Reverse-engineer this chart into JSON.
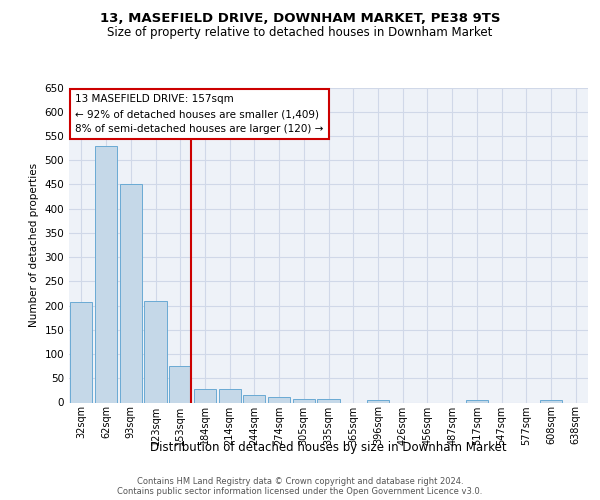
{
  "title1": "13, MASEFIELD DRIVE, DOWNHAM MARKET, PE38 9TS",
  "title2": "Size of property relative to detached houses in Downham Market",
  "xlabel": "Distribution of detached houses by size in Downham Market",
  "ylabel": "Number of detached properties",
  "footer1": "Contains HM Land Registry data © Crown copyright and database right 2024.",
  "footer2": "Contains public sector information licensed under the Open Government Licence v3.0.",
  "categories": [
    "32sqm",
    "62sqm",
    "93sqm",
    "123sqm",
    "153sqm",
    "184sqm",
    "214sqm",
    "244sqm",
    "274sqm",
    "305sqm",
    "335sqm",
    "365sqm",
    "396sqm",
    "426sqm",
    "456sqm",
    "487sqm",
    "517sqm",
    "547sqm",
    "577sqm",
    "608sqm",
    "638sqm"
  ],
  "values": [
    207,
    530,
    450,
    210,
    75,
    27,
    27,
    15,
    12,
    7,
    7,
    0,
    5,
    0,
    0,
    0,
    5,
    0,
    0,
    5,
    0
  ],
  "bar_color": "#c5d8e8",
  "bar_edge_color": "#6aaad4",
  "grid_color": "#d0d8e8",
  "background_color": "#eef2f8",
  "annotation_box_color": "#cc0000",
  "vline_color": "#cc0000",
  "vline_x_index": 4,
  "annotation_title": "13 MASEFIELD DRIVE: 157sqm",
  "annotation_line1": "← 92% of detached houses are smaller (1,409)",
  "annotation_line2": "8% of semi-detached houses are larger (120) →",
  "ylim": [
    0,
    650
  ],
  "yticks": [
    0,
    50,
    100,
    150,
    200,
    250,
    300,
    350,
    400,
    450,
    500,
    550,
    600,
    650
  ]
}
